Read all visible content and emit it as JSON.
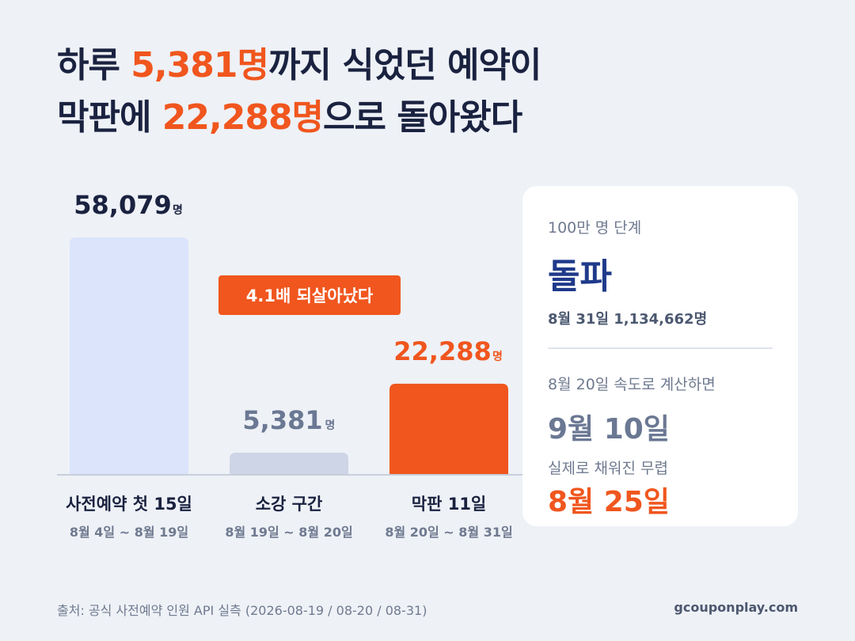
{
  "headline": {
    "line1_pre": "하루 ",
    "line1_accent": "5,381명",
    "line1_post": "까지 식었던 예약이",
    "line2_pre": "막판에 ",
    "line2_accent": "22,288명",
    "line2_post": "으로 돌아왔다"
  },
  "chart_data": {
    "type": "bar",
    "categories": [
      "사전예약 첫 15일",
      "소강 구간",
      "막판 11일"
    ],
    "sublabels": [
      "8월 4일 ~ 8월 19일",
      "8월 19일 ~ 8월 20일",
      "8월 20일 ~ 8월 31일"
    ],
    "values": [
      58079,
      5381,
      22288
    ],
    "value_labels": [
      "58,079",
      "5,381",
      "22,288"
    ],
    "unit": "명",
    "callout": "4.1배 되살아났다",
    "ylim": [
      0,
      58079
    ],
    "grid": false,
    "colors": [
      "#dbe4fb",
      "#cdd5e6",
      "#f0561e"
    ],
    "value_colors": [
      "#1a2240",
      "#6b7893",
      "#f0561e"
    ]
  },
  "card": {
    "label1": "100만 명 단계",
    "big1": "돌파",
    "sub1": "8월 31일 1,134,662명",
    "label2": "8월 20일 속도로 계산하면",
    "mid": "9월 10일",
    "label3": "실제로 채워진 무렵",
    "accent": "8월 25일"
  },
  "footer": {
    "source": "출처: 공식 사전예약 인원 API 실측 (2026-08-19 / 08-20 / 08-31)",
    "site": "gcouponplay.com"
  },
  "colors": {
    "navy": "#1a2240",
    "orange": "#f0561e",
    "background": "#eef1f6",
    "card": "#ffffff"
  }
}
